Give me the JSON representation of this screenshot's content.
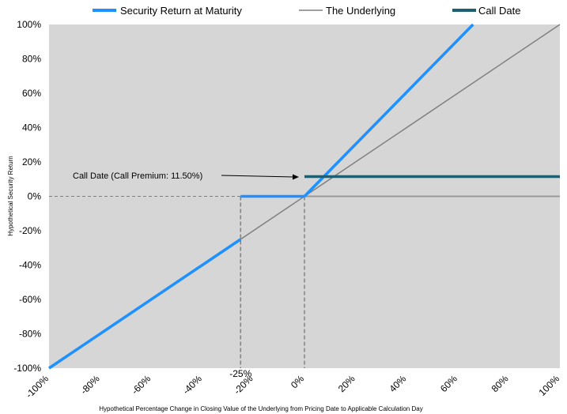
{
  "chart_data": {
    "type": "line",
    "title": "",
    "xlabel": "Hypothetical Percentage Change in Closing Value of the Underlying from Pricing Date to Applicable Calculation Day",
    "ylabel": "Hypothetical Security Return",
    "xlim": [
      -100,
      100
    ],
    "ylim": [
      -100,
      100
    ],
    "x_ticks": [
      -100,
      -80,
      -60,
      -40,
      -20,
      0,
      20,
      40,
      60,
      80,
      100
    ],
    "y_ticks": [
      100,
      80,
      60,
      40,
      20,
      0,
      -20,
      -40,
      -60,
      -80,
      -100
    ],
    "x_tick_labels": [
      "-100%",
      "-80%",
      "-60%",
      "-40%",
      "-20%",
      "0%",
      "20%",
      "40%",
      "60%",
      "80%",
      "100%"
    ],
    "y_tick_labels": [
      "100%",
      "80%",
      "60%",
      "40%",
      "20%",
      "0%",
      "-20%",
      "-40%",
      "-60%",
      "-80%",
      "-100%"
    ],
    "legend_position": "top",
    "series": [
      {
        "name": "Security Return at Maturity",
        "color": "#1e90ff",
        "style": "thick",
        "segments": [
          [
            [
              -100,
              -100
            ],
            [
              -25,
              -25
            ]
          ],
          [
            [
              -25,
              0
            ],
            [
              0,
              0
            ]
          ],
          [
            [
              0,
              0
            ],
            [
              66,
              100
            ]
          ]
        ]
      },
      {
        "name": "The Underlying",
        "color": "#808080",
        "style": "thin",
        "segments": [
          [
            [
              -100,
              -100
            ],
            [
              100,
              100
            ]
          ]
        ]
      },
      {
        "name": "Call Date",
        "color": "#1d5f73",
        "style": "thick",
        "segments": [
          [
            [
              0,
              11.5
            ],
            [
              100,
              11.5
            ]
          ]
        ]
      }
    ],
    "baseline": {
      "color": "#999999",
      "segments": [
        [
          [
            0,
            0
          ],
          [
            100,
            0
          ]
        ]
      ]
    },
    "reference_lines": {
      "color": "#808080",
      "dashed": true,
      "x_values": [
        -25,
        0
      ],
      "y_values": [
        0
      ]
    },
    "special_label": {
      "text": "-25%",
      "x": -25
    },
    "annotation": {
      "text": "Call Date (Call Premium: 11.50%)",
      "arrow_to": [
        0,
        11.5
      ]
    }
  }
}
